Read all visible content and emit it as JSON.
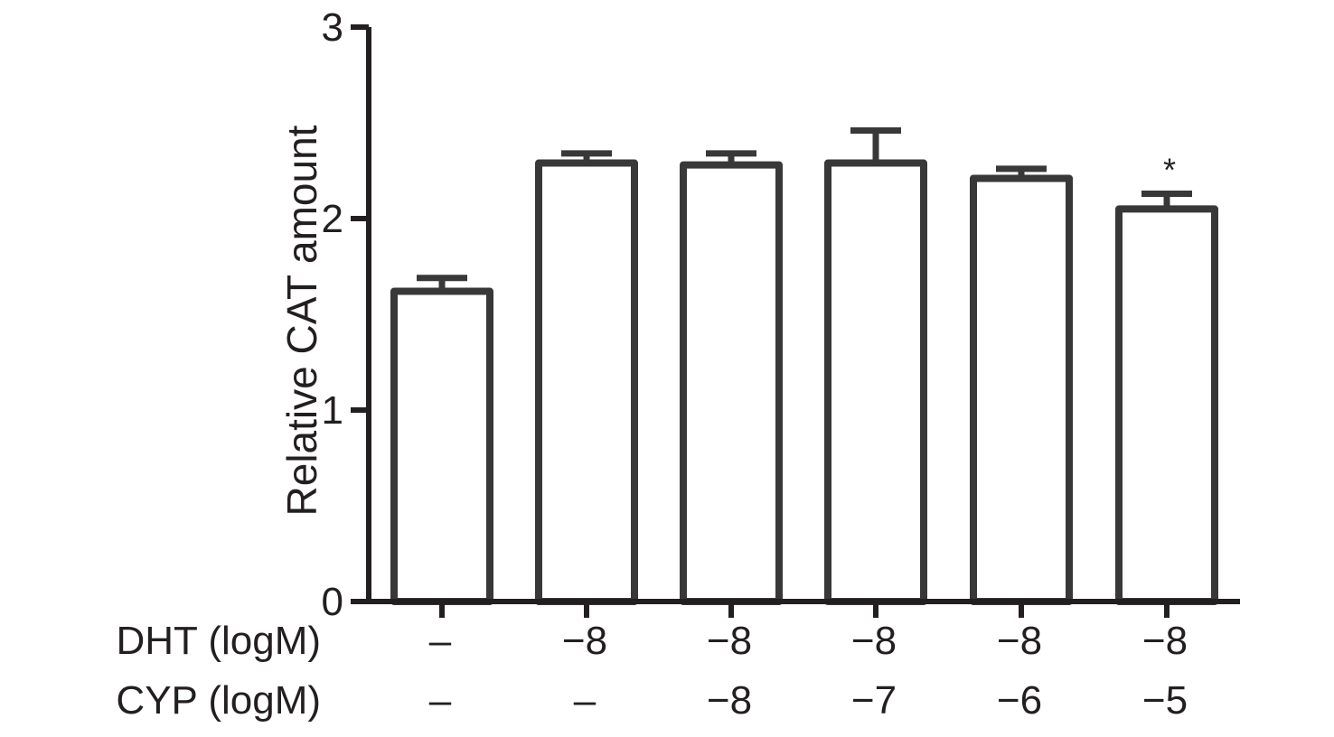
{
  "chart_data": {
    "type": "bar",
    "title": "",
    "ylabel": "Relative CAT amount",
    "ylim": [
      0,
      3
    ],
    "yticks": [
      "0",
      "1",
      "2",
      "3"
    ],
    "grid": false,
    "legend": "none",
    "categories": [
      "DHT – / CYP –",
      "DHT −8 / CYP –",
      "DHT −8 / CYP −8",
      "DHT −8 / CYP −7",
      "DHT −8 / CYP −6",
      "DHT −8 / CYP −5"
    ],
    "values": [
      1.62,
      2.29,
      2.28,
      2.29,
      2.21,
      2.05
    ],
    "error_upper": [
      1.69,
      2.34,
      2.34,
      2.46,
      2.26,
      2.13
    ],
    "significance": [
      "",
      "",
      "",
      "",
      "",
      "*"
    ],
    "row_labels": [
      {
        "label": "DHT (logM)",
        "values": [
          "–",
          "−8",
          "−8",
          "−8",
          "−8",
          "−8"
        ]
      },
      {
        "label": "CYP (logM)",
        "values": [
          "–",
          "–",
          "−8",
          "−7",
          "−6",
          "−5"
        ]
      }
    ],
    "colors": {
      "bar_stroke": "#383838",
      "bar_fill": "#ffffff",
      "axis": "#231f20"
    }
  }
}
